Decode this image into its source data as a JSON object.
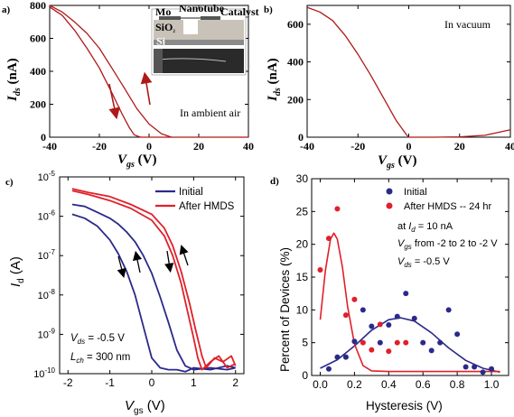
{
  "chart_data": [
    {
      "panel": "a)",
      "type": "line",
      "xlabel_main": "V",
      "xlabel_sub": "gs",
      "xlabel_unit": " (V)",
      "ylabel_main": "I",
      "ylabel_sub": "ds",
      "ylabel_unit": " (nA)",
      "xlim": [
        -40,
        40
      ],
      "ylim": [
        0,
        800
      ],
      "xticks": [
        "-40",
        "-20",
        "0",
        "20",
        "40"
      ],
      "yticks": [
        "0",
        "200",
        "400",
        "600",
        "800"
      ],
      "annotation": "In ambient air",
      "inset_labels": {
        "mo": "Mo",
        "nanotube": "Nanotube",
        "catalyst": "Catalyst",
        "sio2": "SiO",
        "sio2_sub": "2",
        "si": "Si"
      },
      "color": "#b01818",
      "series": [
        {
          "x": [
            -40,
            -35,
            -30,
            -25,
            -20,
            -15,
            -10,
            -5,
            0,
            5,
            9
          ],
          "y": [
            800,
            760,
            700,
            630,
            540,
            420,
            300,
            175,
            80,
            20,
            0
          ]
        },
        {
          "x": [
            -40,
            -35,
            -30,
            -25,
            -20,
            -15,
            -11,
            -8,
            -6,
            -4,
            -3,
            40
          ],
          "y": [
            790,
            740,
            650,
            540,
            420,
            270,
            145,
            60,
            15,
            3,
            0,
            0
          ]
        }
      ]
    },
    {
      "panel": "b)",
      "type": "line",
      "xlabel_main": "V",
      "xlabel_sub": "gs",
      "xlabel_unit": " (V)",
      "ylabel_main": "I",
      "ylabel_sub": "ds",
      "ylabel_unit": " (nA)",
      "xlim": [
        -40,
        40
      ],
      "ylim": [
        0,
        700
      ],
      "xticks": [
        "-40",
        "-20",
        "0",
        "20",
        "40"
      ],
      "yticks": [
        "0",
        "200",
        "400",
        "600"
      ],
      "annotation": "In vacuum",
      "color": "#b01818",
      "series": [
        {
          "x": [
            -40,
            -35,
            -30,
            -25,
            -20,
            -15,
            -10,
            -5,
            -1,
            0,
            5,
            10,
            20,
            30,
            40
          ],
          "y": [
            690,
            665,
            620,
            540,
            440,
            330,
            210,
            90,
            15,
            0,
            0,
            0,
            2,
            10,
            40
          ]
        }
      ]
    },
    {
      "panel": "c)",
      "type": "line",
      "yscale": "log",
      "xlabel_main": "V",
      "xlabel_sub": "gs",
      "xlabel_unit": " (V)",
      "ylabel_main": "I",
      "ylabel_sub": "d",
      "ylabel_unit": " (A)",
      "xlim": [
        -2.2,
        2.2
      ],
      "ylim_exp": [
        -10,
        -5
      ],
      "xticks": [
        "-2",
        "-1",
        "0",
        "1",
        "2"
      ],
      "ytick_exps": [
        "-10",
        "-9",
        "-8",
        "-7",
        "-6",
        "-5"
      ],
      "legend": [
        "Initial",
        "After HMDS"
      ],
      "colors": {
        "initial": "#2a2a8a",
        "hmds": "#e0202a"
      },
      "note_vds_main": "V",
      "note_vds_sub": "ds",
      "note_vds_val": " = -0.5 V",
      "note_lch_main": "L",
      "note_lch_sub": "ch",
      "note_lch_val": " = 300 nm",
      "series": [
        {
          "name": "Initial",
          "x": [
            -1.9,
            -1.6,
            -1.3,
            -1.0,
            -0.8,
            -0.6,
            -0.4,
            -0.2,
            0.0,
            0.2,
            0.4,
            0.6,
            0.8,
            1.0,
            1.4,
            1.8,
            2.0
          ],
          "y": [
            -5.95,
            -6.05,
            -6.25,
            -6.6,
            -6.95,
            -7.4,
            -8.0,
            -8.8,
            -9.6,
            -9.85,
            -9.9,
            -9.9,
            -9.95,
            -9.85,
            -9.9,
            -9.8,
            -9.85
          ]
        },
        {
          "name": "Initial",
          "x": [
            -1.9,
            -1.6,
            -1.3,
            -1.0,
            -0.8,
            -0.6,
            -0.4,
            -0.2,
            0.0,
            0.2,
            0.4,
            0.6,
            0.8,
            1.0,
            1.4,
            1.8,
            2.0
          ],
          "y": [
            -5.7,
            -5.75,
            -5.9,
            -6.05,
            -6.2,
            -6.4,
            -6.65,
            -7.0,
            -7.45,
            -8.05,
            -8.7,
            -9.4,
            -9.8,
            -9.9,
            -9.85,
            -9.9,
            -9.85
          ]
        },
        {
          "name": "After HMDS",
          "x": [
            -1.9,
            -1.5,
            -1.0,
            -0.5,
            0.0,
            0.3,
            0.5,
            0.7,
            0.85,
            1.0,
            1.1,
            1.2,
            1.4,
            1.6,
            1.8,
            2.0
          ],
          "y": [
            -5.35,
            -5.45,
            -5.6,
            -5.8,
            -6.1,
            -6.5,
            -7.0,
            -7.7,
            -8.4,
            -9.1,
            -9.6,
            -9.9,
            -9.7,
            -9.55,
            -9.85,
            -9.75
          ]
        },
        {
          "name": "After HMDS",
          "x": [
            -1.9,
            -1.5,
            -1.0,
            -0.5,
            0.0,
            0.3,
            0.5,
            0.7,
            0.9,
            1.05,
            1.2,
            1.3,
            1.5,
            1.7,
            1.9,
            2.0
          ],
          "y": [
            -5.3,
            -5.4,
            -5.5,
            -5.7,
            -5.95,
            -6.3,
            -6.75,
            -7.4,
            -8.2,
            -8.9,
            -9.55,
            -9.85,
            -9.6,
            -9.7,
            -9.55,
            -9.8
          ]
        }
      ]
    },
    {
      "panel": "d)",
      "type": "scatter",
      "xlabel": "Hysteresis (V)",
      "ylabel": "Percent of Devices (%)",
      "xlim": [
        -0.05,
        1.1
      ],
      "ylim": [
        0,
        30
      ],
      "xticks": [
        "0.0",
        "0.2",
        "0.4",
        "0.6",
        "0.8",
        "1.0"
      ],
      "yticks": [
        "0",
        "5",
        "10",
        "15",
        "20",
        "25",
        "30"
      ],
      "legend": [
        "Initial",
        "After HMDS -- 24 hr"
      ],
      "colors": {
        "initial": "#2a2a8a",
        "hmds": "#e0202a"
      },
      "note1_pre": "at  ",
      "note1_main": "I",
      "note1_sub": "d",
      "note1_val": " = 10 nA",
      "note2_main": "V",
      "note2_sub": "gs",
      "note2_val": " from -2 to 2 to -2 V",
      "note3_main": "V",
      "note3_sub": "ds",
      "note3_val": " = -0.5 V",
      "series": [
        {
          "name": "Initial",
          "x": [
            0.05,
            0.1,
            0.15,
            0.2,
            0.25,
            0.3,
            0.35,
            0.4,
            0.45,
            0.5,
            0.55,
            0.6,
            0.65,
            0.7,
            0.75,
            0.8,
            0.85,
            0.9,
            0.95,
            1.0
          ],
          "y": [
            1.0,
            2.8,
            2.8,
            5.2,
            10.0,
            7.5,
            5.0,
            7.7,
            9.0,
            12.5,
            8.7,
            5.0,
            3.8,
            5.0,
            10.0,
            6.3,
            1.3,
            1.3,
            0.5,
            1.0
          ]
        },
        {
          "name": "After HMDS -- 24 hr",
          "x": [
            0.0,
            0.05,
            0.1,
            0.15,
            0.2,
            0.25,
            0.3,
            0.35,
            0.4,
            0.45,
            0.5
          ],
          "y": [
            16.1,
            20.9,
            25.4,
            9.2,
            11.6,
            5.0,
            3.9,
            7.8,
            3.7,
            5.0,
            5.0
          ]
        }
      ],
      "fits": [
        {
          "name": "Initial",
          "x": [
            0.0,
            0.1,
            0.2,
            0.3,
            0.4,
            0.47,
            0.55,
            0.65,
            0.75,
            0.85,
            0.95,
            1.05
          ],
          "y": [
            1.1,
            2.4,
            4.5,
            6.9,
            8.5,
            8.8,
            8.3,
            6.5,
            4.2,
            2.3,
            1.1,
            0.5
          ]
        },
        {
          "name": "After HMDS -- 24 hr",
          "x": [
            0.0,
            0.03,
            0.06,
            0.08,
            0.1,
            0.13,
            0.16,
            0.2,
            0.25,
            0.3,
            0.4,
            1.05
          ],
          "y": [
            8.5,
            16.0,
            20.8,
            21.7,
            20.8,
            16.5,
            10.5,
            4.8,
            1.5,
            0.7,
            0.6,
            0.6
          ]
        }
      ]
    }
  ]
}
